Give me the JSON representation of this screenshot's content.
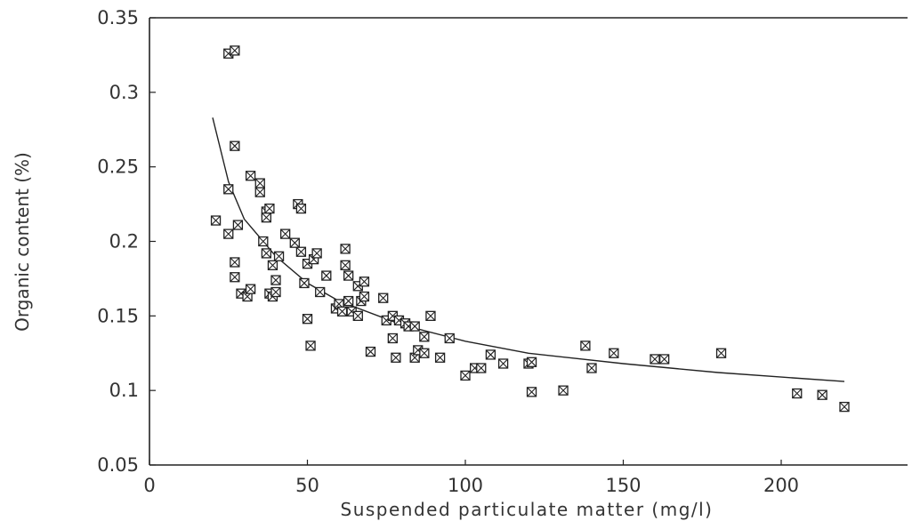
{
  "chart_data": {
    "type": "scatter",
    "title": "",
    "xlabel": "Suspended particulate matter (mg/l)",
    "ylabel": "Organic content (%)",
    "xlim": [
      0,
      240
    ],
    "ylim": [
      0.05,
      0.35
    ],
    "xticks": [
      0,
      50,
      100,
      150,
      200
    ],
    "xtick_labels": [
      "0",
      "50",
      "100",
      "150",
      "200"
    ],
    "yticks": [
      0.05,
      0.1,
      0.15,
      0.2,
      0.25,
      0.3,
      0.35
    ],
    "ytick_labels": [
      "0.05",
      "0.1",
      "0.15",
      "0.2",
      "0.25",
      "0.3",
      "0.35"
    ],
    "grid": false,
    "marker": "boxed-x",
    "colors": {
      "marker": "#222222",
      "line": "#222222",
      "axis": "#222222"
    },
    "points": [
      [
        21,
        0.214
      ],
      [
        25,
        0.326
      ],
      [
        27,
        0.328
      ],
      [
        25,
        0.235
      ],
      [
        25,
        0.205
      ],
      [
        27,
        0.264
      ],
      [
        28,
        0.211
      ],
      [
        27,
        0.186
      ],
      [
        27,
        0.176
      ],
      [
        29,
        0.165
      ],
      [
        31,
        0.163
      ],
      [
        32,
        0.168
      ],
      [
        32,
        0.244
      ],
      [
        35,
        0.239
      ],
      [
        35,
        0.233
      ],
      [
        36,
        0.2
      ],
      [
        37,
        0.22
      ],
      [
        37,
        0.216
      ],
      [
        38,
        0.222
      ],
      [
        37,
        0.192
      ],
      [
        38,
        0.165
      ],
      [
        39,
        0.184
      ],
      [
        39,
        0.163
      ],
      [
        40,
        0.174
      ],
      [
        40,
        0.166
      ],
      [
        41,
        0.19
      ],
      [
        43,
        0.205
      ],
      [
        46,
        0.199
      ],
      [
        47,
        0.225
      ],
      [
        48,
        0.222
      ],
      [
        48,
        0.193
      ],
      [
        49,
        0.172
      ],
      [
        50,
        0.185
      ],
      [
        52,
        0.188
      ],
      [
        53,
        0.192
      ],
      [
        54,
        0.166
      ],
      [
        50,
        0.148
      ],
      [
        51,
        0.13
      ],
      [
        56,
        0.177
      ],
      [
        59,
        0.155
      ],
      [
        60,
        0.158
      ],
      [
        61,
        0.153
      ],
      [
        62,
        0.195
      ],
      [
        62,
        0.184
      ],
      [
        63,
        0.177
      ],
      [
        63,
        0.16
      ],
      [
        64,
        0.153
      ],
      [
        66,
        0.15
      ],
      [
        66,
        0.17
      ],
      [
        67,
        0.16
      ],
      [
        68,
        0.173
      ],
      [
        68,
        0.163
      ],
      [
        70,
        0.126
      ],
      [
        74,
        0.162
      ],
      [
        75,
        0.147
      ],
      [
        77,
        0.15
      ],
      [
        77,
        0.135
      ],
      [
        78,
        0.122
      ],
      [
        79,
        0.147
      ],
      [
        81,
        0.145
      ],
      [
        82,
        0.143
      ],
      [
        84,
        0.143
      ],
      [
        84,
        0.122
      ],
      [
        85,
        0.127
      ],
      [
        87,
        0.125
      ],
      [
        87,
        0.136
      ],
      [
        89,
        0.15
      ],
      [
        92,
        0.122
      ],
      [
        95,
        0.135
      ],
      [
        100,
        0.11
      ],
      [
        103,
        0.115
      ],
      [
        105,
        0.115
      ],
      [
        108,
        0.124
      ],
      [
        112,
        0.118
      ],
      [
        120,
        0.118
      ],
      [
        121,
        0.119
      ],
      [
        121,
        0.099
      ],
      [
        131,
        0.1
      ],
      [
        138,
        0.13
      ],
      [
        140,
        0.115
      ],
      [
        147,
        0.125
      ],
      [
        160,
        0.121
      ],
      [
        163,
        0.121
      ],
      [
        181,
        0.125
      ],
      [
        205,
        0.098
      ],
      [
        213,
        0.097
      ],
      [
        220,
        0.089
      ]
    ],
    "fit_curve": [
      [
        20,
        0.283
      ],
      [
        25,
        0.24
      ],
      [
        30,
        0.215
      ],
      [
        40,
        0.19
      ],
      [
        50,
        0.172
      ],
      [
        60,
        0.16
      ],
      [
        80,
        0.144
      ],
      [
        100,
        0.133
      ],
      [
        120,
        0.125
      ],
      [
        150,
        0.118
      ],
      [
        180,
        0.112
      ],
      [
        200,
        0.109
      ],
      [
        220,
        0.106
      ]
    ]
  }
}
